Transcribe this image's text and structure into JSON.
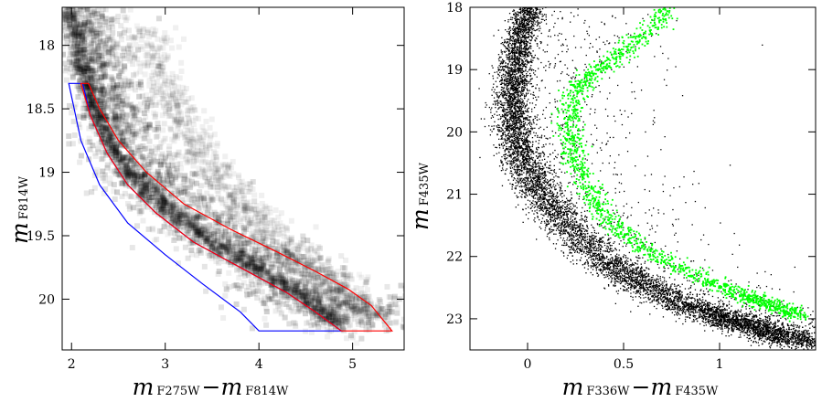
{
  "chart_data": [
    {
      "type": "scatter",
      "panel": "left",
      "xlabel": {
        "m": "m",
        "sub1": "F275W",
        "dash": "−",
        "m2": "m",
        "sub2": "F814W"
      },
      "ylabel": {
        "m": "m",
        "sub": "F814W"
      },
      "xlim": [
        1.9,
        5.55
      ],
      "ylim": [
        20.4,
        17.7
      ],
      "y_inverted": true,
      "xticks": [
        "2",
        "3",
        "4",
        "5"
      ],
      "xtick_values": [
        2,
        3,
        4,
        5
      ],
      "yticks": [
        "18",
        "18.5",
        "19",
        "19.5",
        "20"
      ],
      "ytick_values": [
        18,
        18.5,
        19,
        19.5,
        20
      ],
      "density_ridge": {
        "x": [
          1.98,
          2.05,
          2.12,
          2.22,
          2.35,
          2.55,
          2.8,
          3.1,
          3.5,
          3.9,
          4.3,
          4.6,
          4.85
        ],
        "y": [
          17.7,
          17.95,
          18.2,
          18.45,
          18.7,
          18.95,
          19.15,
          19.35,
          19.55,
          19.72,
          19.9,
          20.05,
          20.2
        ]
      },
      "secondary_sequence": {
        "x": [
          2.85,
          3.0,
          3.2,
          3.45,
          3.75,
          4.1,
          4.5,
          4.9,
          5.25
        ],
        "y": [
          17.9,
          18.3,
          18.6,
          18.9,
          19.2,
          19.45,
          19.72,
          19.95,
          20.15
        ]
      },
      "selection_regions": [
        {
          "color": "#0000ff",
          "x": [
            1.97,
            2.12,
            2.2,
            2.38,
            2.6,
            2.9,
            3.3,
            3.8,
            4.3,
            4.6,
            4.88,
            4.0,
            3.8,
            3.4,
            3.0,
            2.6,
            2.3,
            2.1,
            1.97
          ],
          "y": [
            18.3,
            18.3,
            18.55,
            18.85,
            19.1,
            19.32,
            19.55,
            19.75,
            19.95,
            20.1,
            20.25,
            20.25,
            20.1,
            19.88,
            19.65,
            19.4,
            19.1,
            18.75,
            18.3
          ]
        },
        {
          "color": "#ff0000",
          "x": [
            2.1,
            2.18,
            2.3,
            2.5,
            2.8,
            3.2,
            3.7,
            4.2,
            4.6,
            4.95,
            5.2,
            5.42,
            4.88,
            4.6,
            4.3,
            3.8,
            3.3,
            2.9,
            2.6,
            2.38,
            2.2,
            2.1
          ],
          "y": [
            18.3,
            18.3,
            18.5,
            18.75,
            19.0,
            19.25,
            19.45,
            19.63,
            19.78,
            19.92,
            20.05,
            20.25,
            20.25,
            20.1,
            19.95,
            19.75,
            19.55,
            19.32,
            19.1,
            18.85,
            18.55,
            18.3
          ]
        }
      ]
    },
    {
      "type": "scatter",
      "panel": "right",
      "xlabel": {
        "m": "m",
        "sub1": "F336W",
        "dash": "−",
        "m2": "m",
        "sub2": "F435W"
      },
      "ylabel": {
        "m": "m",
        "sub": "F435W"
      },
      "xlim": [
        -0.3,
        1.5
      ],
      "ylim": [
        23.5,
        18.0
      ],
      "y_inverted": true,
      "xticks": [
        "0",
        "0.5",
        "1"
      ],
      "xtick_values": [
        0,
        0.5,
        1
      ],
      "yticks": [
        "18",
        "19",
        "20",
        "21",
        "22",
        "23"
      ],
      "ytick_values": [
        18,
        19,
        20,
        21,
        22,
        23
      ],
      "series": [
        {
          "color": "#000000",
          "ridge_x": [
            0.0,
            -0.04,
            -0.07,
            -0.08,
            -0.07,
            -0.02,
            0.07,
            0.2,
            0.38,
            0.58,
            0.8,
            1.0,
            1.15,
            1.3,
            1.45
          ],
          "ridge_y": [
            18.0,
            18.5,
            19.0,
            19.5,
            20.0,
            20.5,
            21.0,
            21.5,
            22.0,
            22.4,
            22.75,
            22.95,
            23.1,
            23.25,
            23.4
          ]
        },
        {
          "color": "#00ff00",
          "ridge_x": [
            0.72,
            0.6,
            0.45,
            0.3,
            0.23,
            0.22,
            0.25,
            0.33,
            0.45,
            0.6,
            0.78,
            0.95,
            1.1,
            1.2,
            1.3,
            1.42
          ],
          "ridge_y": [
            18.0,
            18.45,
            18.8,
            19.1,
            19.5,
            20.0,
            20.5,
            21.0,
            21.5,
            21.85,
            22.15,
            22.4,
            22.58,
            22.7,
            22.8,
            22.95
          ]
        }
      ]
    }
  ]
}
